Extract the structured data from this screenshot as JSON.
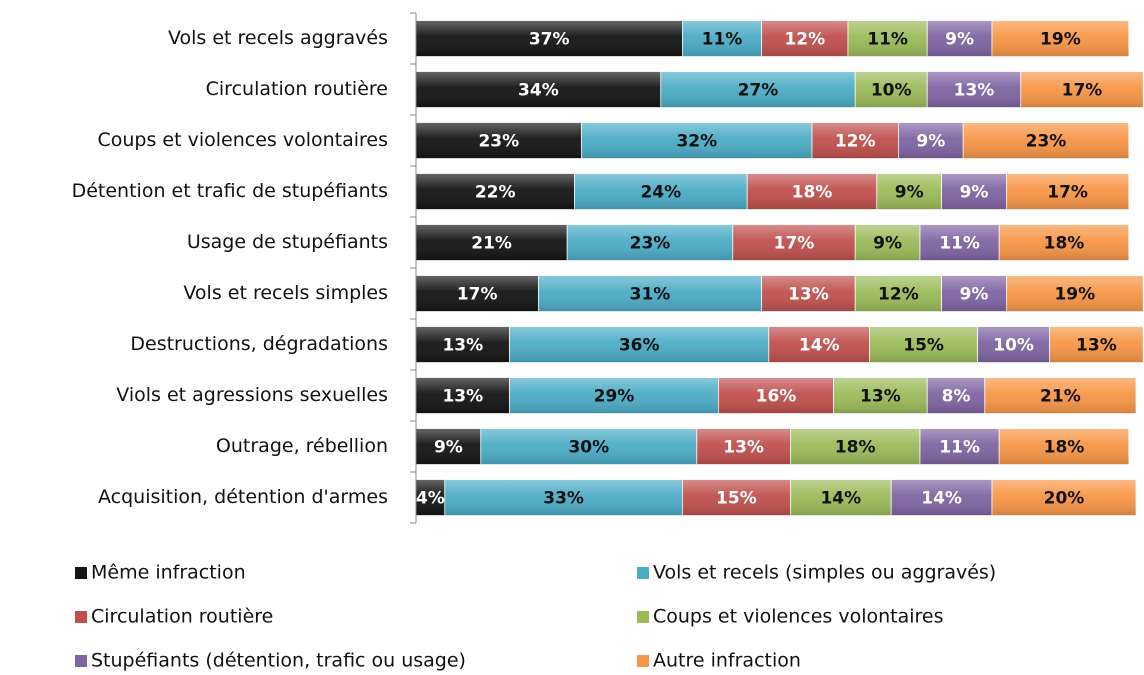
{
  "chart_data": {
    "type": "stacked_barh",
    "categories": [
      "Vols et recels aggravés",
      "Circulation routière",
      "Coups et violences volontaires",
      "Détention et trafic de stupéfiants",
      "Usage de stupéfiants",
      "Vols et recels simples",
      "Destructions, dégradations",
      "Viols et agressions sexuelles",
      "Outrage, rébellion",
      "Acquisition, détention d'armes"
    ],
    "series": [
      {
        "name": "Même infraction",
        "color": "#141414",
        "values": [
          37,
          34,
          23,
          22,
          21,
          17,
          13,
          13,
          9,
          4
        ],
        "value_labels": [
          "37%",
          "34%",
          "23%",
          "22%",
          "21%",
          "17%",
          "13%",
          "13%",
          "9%",
          "4%"
        ]
      },
      {
        "name": "Vols et recels (simples ou aggravés)",
        "color": "#4bacc6",
        "values": [
          11,
          27,
          32,
          24,
          23,
          31,
          36,
          29,
          30,
          33
        ],
        "value_labels": [
          "11%",
          "27%",
          "32%",
          "24%",
          "23%",
          "31%",
          "36%",
          "29%",
          "30%",
          "33%"
        ]
      },
      {
        "name": "Circulation routière",
        "color": "#c0504d",
        "values": [
          12,
          null,
          12,
          18,
          17,
          13,
          14,
          16,
          13,
          15
        ],
        "value_labels": [
          "12%",
          null,
          "12%",
          "18%",
          "17%",
          "13%",
          "14%",
          "16%",
          "13%",
          "15%"
        ]
      },
      {
        "name": "Coups et violences volontaires",
        "color": "#9bbb59",
        "values": [
          11,
          10,
          null,
          9,
          9,
          12,
          15,
          13,
          18,
          14
        ],
        "value_labels": [
          "11%",
          "10%",
          null,
          "9%",
          "9%",
          "12%",
          "15%",
          "13%",
          "18%",
          "14%"
        ]
      },
      {
        "name": "Stupéfiants (détention, trafic ou usage)",
        "color": "#8064a2",
        "values": [
          9,
          13,
          9,
          9,
          11,
          9,
          10,
          8,
          11,
          14
        ],
        "value_labels": [
          "9%",
          "13%",
          "9%",
          "9%",
          "11%",
          "9%",
          "10%",
          "8%",
          "11%",
          "14%"
        ]
      },
      {
        "name": "Autre infraction",
        "color": "#f79646",
        "values": [
          19,
          17,
          23,
          17,
          18,
          19,
          13,
          21,
          18,
          20
        ],
        "value_labels": [
          "19%",
          "17%",
          "23%",
          "17%",
          "18%",
          "19%",
          "13%",
          "21%",
          "18%",
          "20%"
        ]
      }
    ],
    "xlim": [
      0,
      100
    ],
    "legend": "bottom"
  }
}
